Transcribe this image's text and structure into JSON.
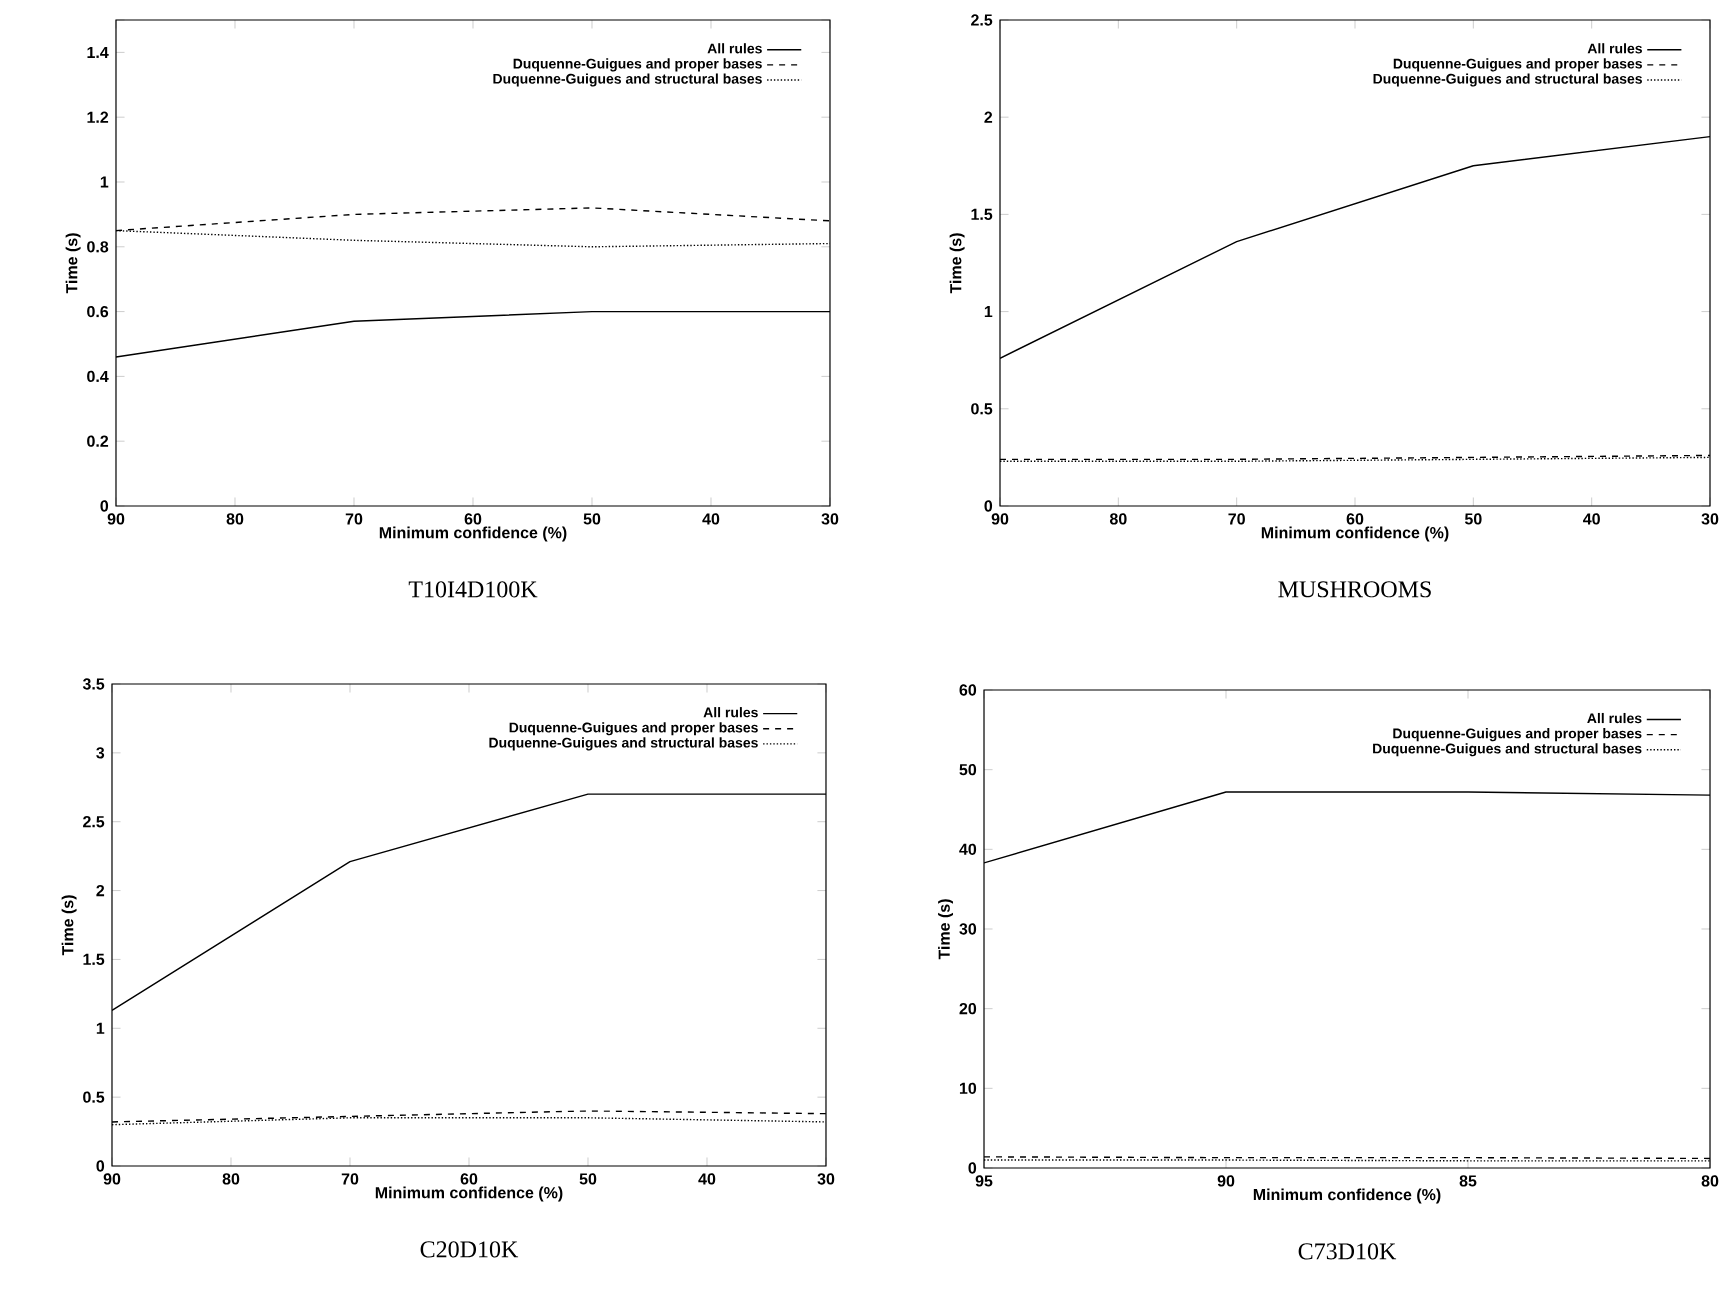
{
  "chart_data": [
    {
      "type": "line",
      "title": "T10I4D100K",
      "xlabel": "Minimum confidence (%)",
      "ylabel": "Time (s)",
      "x": [
        90,
        70,
        50,
        30
      ],
      "xlim": [
        90,
        30
      ],
      "xticks": [
        90,
        80,
        70,
        60,
        50,
        40,
        30
      ],
      "ylim": [
        0,
        1.5
      ],
      "yticks": [
        0,
        0.2,
        0.4,
        0.6,
        0.8,
        1,
        1.2,
        1.4,
        {
          "value": 1.5,
          "label": null
        }
      ],
      "legend": "top right",
      "series": [
        {
          "name": "All rules",
          "color": "#000000",
          "line_style": "solid",
          "values": [
            0.46,
            0.57,
            0.6,
            0.6
          ]
        },
        {
          "name": "Duquenne-Guigues and proper bases",
          "color": "#000000",
          "line_style": "dashed",
          "values": [
            0.85,
            0.9,
            0.92,
            0.88
          ]
        },
        {
          "name": "Duquenne-Guigues and structural bases",
          "color": "#000000",
          "line_style": "dotted",
          "values": [
            0.85,
            0.82,
            0.8,
            0.81
          ]
        }
      ]
    },
    {
      "type": "line",
      "title": "MUSHROOMS",
      "xlabel": "Minimum confidence (%)",
      "ylabel": "Time (s)",
      "x": [
        90,
        70,
        50,
        30
      ],
      "xlim": [
        90,
        30
      ],
      "xticks": [
        90,
        80,
        70,
        60,
        50,
        40,
        30
      ],
      "ylim": [
        0,
        2.5
      ],
      "yticks": [
        0,
        0.5,
        1,
        1.5,
        2,
        2.5
      ],
      "legend": "top right",
      "series": [
        {
          "name": "All rules",
          "color": "#000000",
          "line_style": "solid",
          "values": [
            0.76,
            1.36,
            1.75,
            1.9
          ]
        },
        {
          "name": "Duquenne-Guigues and proper bases",
          "color": "#000000",
          "line_style": "dashed",
          "values": [
            0.24,
            0.24,
            0.25,
            0.26
          ]
        },
        {
          "name": "Duquenne-Guigues and structural bases",
          "color": "#000000",
          "line_style": "dotted",
          "values": [
            0.23,
            0.23,
            0.24,
            0.25
          ]
        }
      ]
    },
    {
      "type": "line",
      "title": "C20D10K",
      "xlabel": "Minimum confidence (%)",
      "ylabel": "Time (s)",
      "x": [
        90,
        70,
        50,
        30
      ],
      "xlim": [
        90,
        30
      ],
      "xticks": [
        90,
        80,
        70,
        60,
        50,
        40,
        30
      ],
      "ylim": [
        0,
        3.5
      ],
      "yticks": [
        0,
        0.5,
        1,
        1.5,
        2,
        2.5,
        3,
        3.5
      ],
      "legend": "top right",
      "series": [
        {
          "name": "All rules",
          "color": "#000000",
          "line_style": "solid",
          "values": [
            1.13,
            2.21,
            2.7,
            2.7
          ]
        },
        {
          "name": "Duquenne-Guigues and proper bases",
          "color": "#000000",
          "line_style": "dashed",
          "values": [
            0.32,
            0.36,
            0.4,
            0.38
          ]
        },
        {
          "name": "Duquenne-Guigues and structural bases",
          "color": "#000000",
          "line_style": "dotted",
          "values": [
            0.3,
            0.35,
            0.35,
            0.32
          ]
        }
      ]
    },
    {
      "type": "line",
      "title": "C73D10K",
      "xlabel": "Minimum confidence (%)",
      "ylabel": "Time (s)",
      "x": [
        95,
        90,
        85,
        80
      ],
      "xlim": [
        95,
        80
      ],
      "xticks": [
        95,
        90,
        85,
        80
      ],
      "ylim": [
        0,
        60
      ],
      "yticks": [
        0,
        10,
        20,
        30,
        40,
        50,
        60
      ],
      "legend": "top right",
      "series": [
        {
          "name": "All rules",
          "color": "#000000",
          "line_style": "solid",
          "values": [
            38.3,
            47.2,
            47.2,
            46.8
          ]
        },
        {
          "name": "Duquenne-Guigues and proper bases",
          "color": "#000000",
          "line_style": "dashed",
          "values": [
            1.4,
            1.3,
            1.3,
            1.2
          ]
        },
        {
          "name": "Duquenne-Guigues and structural bases",
          "color": "#000000",
          "line_style": "dotted",
          "values": [
            1.0,
            1.0,
            0.9,
            0.9
          ]
        }
      ]
    }
  ]
}
